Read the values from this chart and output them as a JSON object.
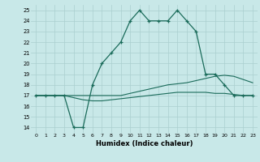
{
  "x": [
    0,
    1,
    2,
    3,
    4,
    5,
    6,
    7,
    8,
    9,
    10,
    11,
    12,
    13,
    14,
    15,
    16,
    17,
    18,
    19,
    20,
    21,
    22,
    23
  ],
  "humidex_main": [
    17,
    17,
    17,
    17,
    14,
    14,
    18,
    20,
    21,
    22,
    24,
    25,
    24,
    24,
    24,
    25,
    24,
    23,
    19,
    19,
    18,
    17,
    17,
    17
  ],
  "humidex_upper": [
    17,
    17,
    17,
    17,
    17,
    17,
    17,
    17,
    17,
    17,
    17.2,
    17.4,
    17.6,
    17.8,
    18.0,
    18.1,
    18.2,
    18.4,
    18.6,
    18.8,
    18.9,
    18.8,
    18.5,
    18.2
  ],
  "humidex_lower": [
    17,
    17,
    17,
    17,
    16.8,
    16.6,
    16.5,
    16.5,
    16.6,
    16.7,
    16.8,
    16.9,
    17.0,
    17.1,
    17.2,
    17.3,
    17.3,
    17.3,
    17.3,
    17.2,
    17.2,
    17.1,
    17.0,
    17.0
  ],
  "bgcolor": "#c8e8e8",
  "grid_color": "#aacfcf",
  "line_color": "#1a6b5a",
  "xlabel": "Humidex (Indice chaleur)",
  "ylim": [
    13.5,
    25.5
  ],
  "xlim": [
    -0.5,
    23.5
  ],
  "yticks": [
    14,
    15,
    16,
    17,
    18,
    19,
    20,
    21,
    22,
    23,
    24,
    25
  ],
  "xticks": [
    0,
    1,
    2,
    3,
    4,
    5,
    6,
    7,
    8,
    9,
    10,
    11,
    12,
    13,
    14,
    15,
    16,
    17,
    18,
    19,
    20,
    21,
    22,
    23
  ]
}
